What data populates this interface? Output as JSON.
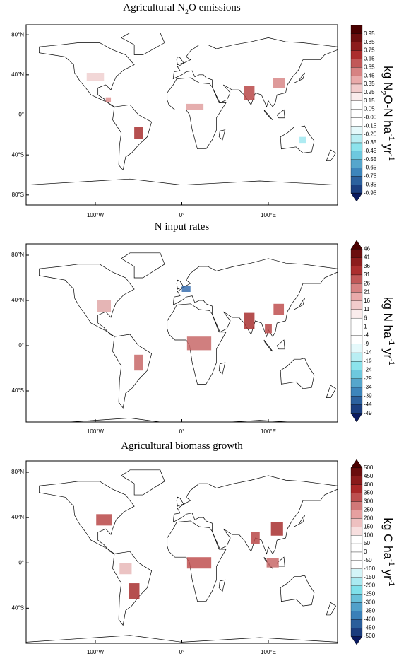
{
  "panels": [
    {
      "title": [
        {
          "text": "Agricultural N"
        },
        {
          "text": "2",
          "sub": true
        },
        {
          "text": "O emissions"
        }
      ],
      "lat_labels": [
        "80°N",
        "40°N",
        "0°",
        "40°S",
        "80°S"
      ],
      "lon_labels": [
        "100°W",
        "0°",
        "100°E"
      ],
      "colorbar": {
        "labels": [
          "0.95",
          "0.85",
          "0.75",
          "0.65",
          "0.55",
          "0.45",
          "0.35",
          "0.25",
          "0.15",
          "0.05",
          "-0.05",
          "-0.15",
          "-0.25",
          "-0.35",
          "-0.45",
          "-0.55",
          "-0.65",
          "-0.75",
          "-0.85",
          "-0.95"
        ],
        "extend": "min",
        "unit": [
          {
            "text": "kg N"
          },
          {
            "text": "2",
            "sub": true
          },
          {
            "text": "O-N ha"
          },
          {
            "text": "-1",
            "sup": true
          },
          {
            "text": " yr"
          },
          {
            "text": "-1",
            "sup": true
          }
        ]
      }
    },
    {
      "title": [
        {
          "text": "N input rates"
        }
      ],
      "lat_labels": [
        "80°N",
        "40°N",
        "0°",
        "40°S"
      ],
      "lon_labels": [
        "100°W",
        "0°",
        "100°E"
      ],
      "colorbar": {
        "labels": [
          "46",
          "41",
          "36",
          "31",
          "26",
          "21",
          "16",
          "11",
          "6",
          "1",
          "-4",
          "-9",
          "-14",
          "-19",
          "-24",
          "-29",
          "-34",
          "-39",
          "-44",
          "-49"
        ],
        "extend": "both",
        "unit": [
          {
            "text": "kg N ha"
          },
          {
            "text": "-1",
            "sup": true
          },
          {
            "text": " yr"
          },
          {
            "text": "-1",
            "sup": true
          }
        ]
      }
    },
    {
      "title": [
        {
          "text": "Agricultural biomass growth"
        }
      ],
      "lat_labels": [
        "80°N",
        "40°N",
        "0°",
        "40°S"
      ],
      "lon_labels": [
        "100°W",
        "0°",
        "100°E"
      ],
      "colorbar": {
        "labels": [
          "500",
          "450",
          "400",
          "350",
          "300",
          "250",
          "200",
          "150",
          "100",
          "50",
          "0",
          "-50",
          "-100",
          "-150",
          "-200",
          "-250",
          "-300",
          "-350",
          "-400",
          "-450",
          "-500"
        ],
        "extend": "both",
        "unit": [
          {
            "text": "kg C ha"
          },
          {
            "text": "-1",
            "sup": true
          },
          {
            "text": " yr"
          },
          {
            "text": "-1",
            "sup": true
          }
        ]
      }
    }
  ],
  "colormap": [
    "#4a0000",
    "#a82828",
    "#e6a0a0",
    "#ffffff",
    "#ffffff",
    "#7fe0ea",
    "#3a80b8",
    "#0a1a60"
  ]
}
